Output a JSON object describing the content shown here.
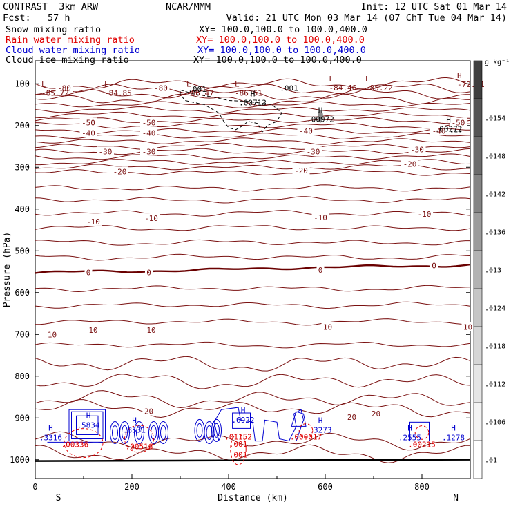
{
  "header": {
    "model": "CONTRAST  3km ARW",
    "center": "NCAR/MMM",
    "init": "Init: 12 UTC Sat 01 Mar 14",
    "fcst": "Fcst:   57 h",
    "valid": "Valid: 21 UTC Mon 03 Mar 14 (07 ChT Tue 04 Mar 14)",
    "fields": [
      {
        "name": "Snow mixing ratio",
        "xy": "XY= 100.0,100.0 to 100.0,400.0",
        "color": "#000000"
      },
      {
        "name": "Rain water mixing ratio",
        "xy": "XY= 100.0,100.0 to 100.0,400.0",
        "color": "#e00000"
      },
      {
        "name": "Cloud water mixing ratio",
        "xy": "XY= 100.0,100.0 to 100.0,400.0",
        "color": "#0000d0"
      },
      {
        "name": "Cloud ice mixing ratio",
        "xy": "XY= 100.0,100.0 to 100.0,400.0",
        "color": "#000000"
      }
    ]
  },
  "chart_data": {
    "type": "contour",
    "xlabel": "Distance (km)",
    "ylabel": "Pressure (hPa)",
    "xlim": [
      0,
      900
    ],
    "ylim": [
      1045,
      45
    ],
    "x_ticks": [
      0,
      200,
      400,
      600,
      800
    ],
    "y_ticks": [
      100,
      200,
      300,
      400,
      500,
      600,
      700,
      800,
      900,
      1000
    ],
    "end_labels": {
      "left": "S",
      "right": "N"
    },
    "colorbar": {
      "unit": "g kg⁻¹",
      "ticks": [
        ".01",
        ".0106",
        ".0112",
        ".0118",
        ".0124",
        ".013",
        ".0136",
        ".0142",
        ".0148",
        ".0154"
      ],
      "colors": [
        "#ffffff",
        "#f4f4f4",
        "#e6e6e6",
        "#d6d6d6",
        "#c6c6c6",
        "#b3b3b3",
        "#9c9c9c",
        "#848484",
        "#6c6c6c",
        "#555555",
        "#3f3f3f"
      ]
    },
    "temperature_contours": {
      "color": "#7a1010",
      "levels_C": [
        -80,
        -70,
        -60,
        -50,
        -40,
        -30,
        -20,
        -10,
        0,
        10,
        20
      ],
      "bold_level": 0,
      "labels": [
        {
          "text": "-80",
          "x": 60,
          "p": 110
        },
        {
          "text": "-80",
          "x": 260,
          "p": 110
        },
        {
          "text": "-50",
          "x": 110,
          "p": 193
        },
        {
          "text": "-50",
          "x": 235,
          "p": 193
        },
        {
          "text": "-50",
          "x": 875,
          "p": 193
        },
        {
          "text": "-40",
          "x": 110,
          "p": 218
        },
        {
          "text": "-40",
          "x": 235,
          "p": 218
        },
        {
          "text": "-40",
          "x": 560,
          "p": 213
        },
        {
          "text": "-40",
          "x": 835,
          "p": 213
        },
        {
          "text": "-30",
          "x": 145,
          "p": 262
        },
        {
          "text": "-30",
          "x": 235,
          "p": 262
        },
        {
          "text": "-30",
          "x": 575,
          "p": 262
        },
        {
          "text": "-30",
          "x": 790,
          "p": 257
        },
        {
          "text": "-20",
          "x": 175,
          "p": 310
        },
        {
          "text": "-20",
          "x": 550,
          "p": 308
        },
        {
          "text": "-20",
          "x": 775,
          "p": 292
        },
        {
          "text": "-10",
          "x": 120,
          "p": 430
        },
        {
          "text": "-10",
          "x": 240,
          "p": 422
        },
        {
          "text": "-10",
          "x": 590,
          "p": 420
        },
        {
          "text": "-10",
          "x": 805,
          "p": 412
        },
        {
          "text": "0",
          "x": 110,
          "p": 552
        },
        {
          "text": "0",
          "x": 235,
          "p": 552
        },
        {
          "text": "0",
          "x": 590,
          "p": 546
        },
        {
          "text": "0",
          "x": 825,
          "p": 535
        },
        {
          "text": "10",
          "x": 35,
          "p": 700
        },
        {
          "text": "10",
          "x": 120,
          "p": 690
        },
        {
          "text": "10",
          "x": 240,
          "p": 690
        },
        {
          "text": "10",
          "x": 605,
          "p": 682
        },
        {
          "text": "10",
          "x": 895,
          "p": 682
        },
        {
          "text": "20",
          "x": 235,
          "p": 884
        },
        {
          "text": "20",
          "x": 655,
          "p": 898
        },
        {
          "text": "20",
          "x": 705,
          "p": 890
        }
      ],
      "extrema": [
        {
          "type": "L",
          "value": "-85.72",
          "x": 10,
          "p": 100
        },
        {
          "type": "L",
          "value": "-84.85",
          "x": 140,
          "p": 100
        },
        {
          "type": "L",
          "value": "-86.47",
          "x": 310,
          "p": 100
        },
        {
          "type": "L",
          "value": "-86.61",
          "x": 410,
          "p": 100
        },
        {
          "type": "L",
          "value": "-84.46",
          "x": 605,
          "p": 88
        },
        {
          "type": "L",
          "value": "-85.22",
          "x": 680,
          "p": 88
        },
        {
          "type": "H",
          "value": "-72.81",
          "x": 870,
          "p": 80
        }
      ]
    },
    "cloud_ice": {
      "color": "#000000",
      "labels": [
        {
          "text": ".001",
          "x": 335,
          "p": 113
        },
        {
          "text": ".001",
          "x": 525,
          "p": 110
        }
      ],
      "maxima": [
        {
          "value": ".00713",
          "x": 450,
          "p": 140
        },
        {
          "value": ".00972",
          "x": 590,
          "p": 180
        },
        {
          "value": ".00272",
          "x": 855,
          "p": 203
        }
      ]
    },
    "cloud_water": {
      "color": "#0000d0",
      "maxima": [
        {
          "value": ".3316",
          "x": 32,
          "p": 940
        },
        {
          "value": ".5834",
          "x": 110,
          "p": 910
        },
        {
          "value": ".8531",
          "x": 205,
          "p": 922
        },
        {
          "value": ".6922",
          "x": 430,
          "p": 898
        },
        {
          "value": ".3273",
          "x": 590,
          "p": 922
        },
        {
          "value": ".2555",
          "x": 775,
          "p": 940
        },
        {
          "value": ".1278",
          "x": 865,
          "p": 940
        }
      ]
    },
    "rain_water": {
      "color": "#e00000",
      "labels": [
        {
          "text": ".001",
          "x": 420,
          "p": 962
        },
        {
          "text": ".001",
          "x": 420,
          "p": 988
        }
      ],
      "maxima": [
        {
          "value": ".00336",
          "x": 82,
          "p": 940
        },
        {
          "value": ".00516",
          "x": 215,
          "p": 945
        },
        {
          "value": ".01152",
          "x": 420,
          "p": 922
        },
        {
          "value": ".000017",
          "x": 560,
          "p": 922
        },
        {
          "value": ".00215",
          "x": 800,
          "p": 940
        }
      ]
    }
  }
}
